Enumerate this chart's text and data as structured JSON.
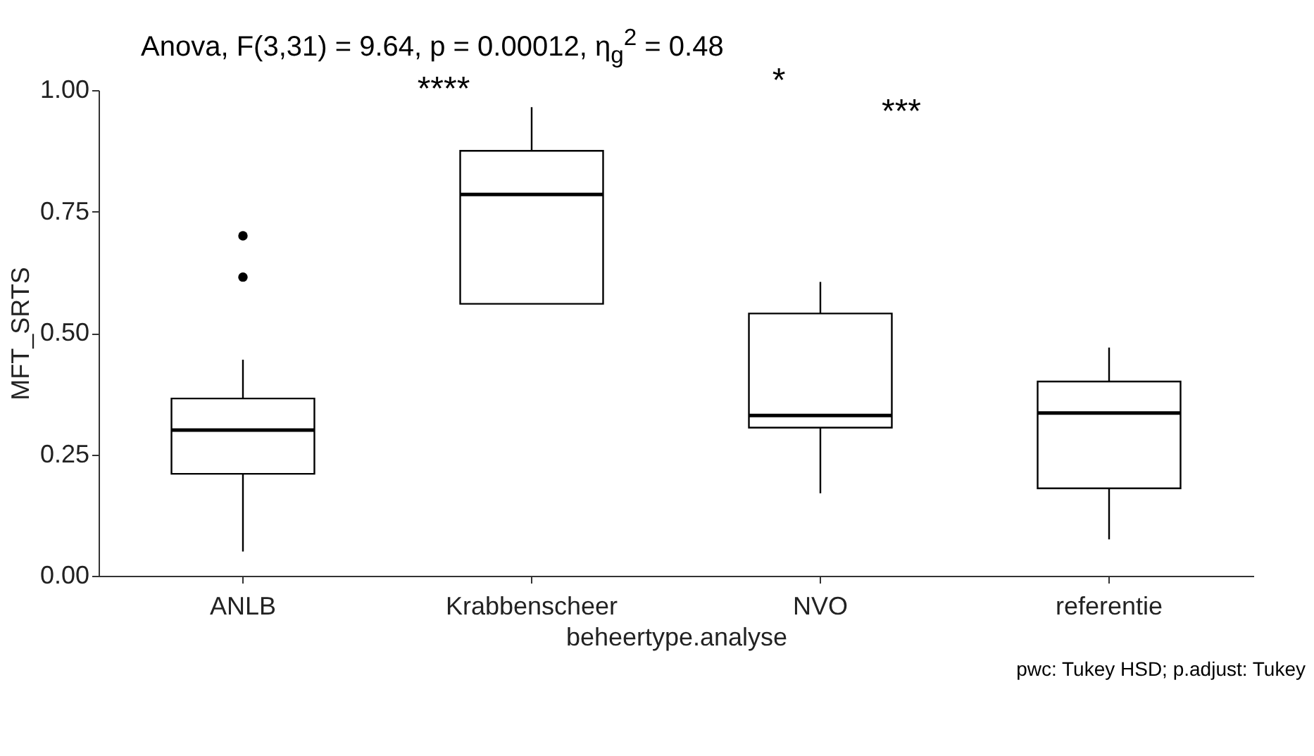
{
  "chart_data": {
    "type": "box",
    "title": "Anova, F(3,31) = 9.64, p = 0.00012, η$_{g}$$^{2}$ = 0.48",
    "xlabel": "beheertype.analyse",
    "ylabel": "MFT_SRTS",
    "categories": [
      "ANLB",
      "Krabbenscheer",
      "NVO",
      "referentie"
    ],
    "boxes": [
      {
        "low": 0.05,
        "q1": 0.21,
        "median": 0.3,
        "q3": 0.365,
        "high": 0.445,
        "outliers": [
          0.7,
          0.615
        ]
      },
      {
        "low": 0.56,
        "q1": 0.56,
        "median": 0.785,
        "q3": 0.875,
        "high": 0.965
      },
      {
        "low": 0.17,
        "q1": 0.305,
        "median": 0.33,
        "q3": 0.54,
        "high": 0.605
      },
      {
        "low": 0.075,
        "q1": 0.18,
        "median": 0.335,
        "q3": 0.4,
        "high": 0.47
      }
    ],
    "ylim": [
      0,
      1
    ],
    "yticks": [
      {
        "value": 0,
        "label": "0.00"
      },
      {
        "value": 0.25,
        "label": "0.25"
      },
      {
        "value": 0.5,
        "label": "0.50"
      },
      {
        "value": 0.75,
        "label": "0.75"
      },
      {
        "value": 1,
        "label": "1.00"
      }
    ],
    "grid": false,
    "annotations": [
      "****",
      "*",
      "***",
      "pwc: Tukey HSD; p.adjust: Tukey"
    ]
  }
}
